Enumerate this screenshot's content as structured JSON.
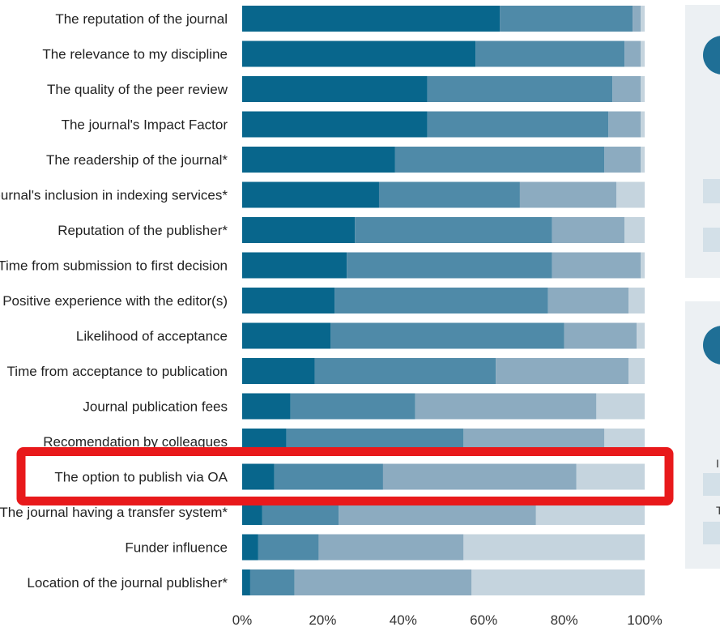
{
  "chart_data": {
    "type": "bar",
    "orientation": "horizontal",
    "stacked": true,
    "percent": true,
    "categories": [
      "The reputation of the journal",
      "The relevance to my discipline",
      "The quality of the peer review",
      "The journal's Impact Factor",
      "The readership of the journal*",
      "The journal's inclusion in indexing services*",
      "Reputation of the publisher*",
      "Time from submission to first decision",
      "Positive experience with the editor(s)",
      "Likelihood of acceptance",
      "Time from acceptance to publication",
      "Journal publication fees",
      "Recomendation by colleagues",
      "The option to publish via OA",
      "The journal having a transfer system*",
      "Funder influence",
      "Location of the journal publisher*"
    ],
    "series": [
      {
        "color": "#08668c",
        "values": [
          64,
          58,
          46,
          46,
          38,
          34,
          28,
          26,
          23,
          22,
          18,
          12,
          11,
          8,
          5,
          4,
          2
        ]
      },
      {
        "color": "#4f8aa8",
        "values": [
          33,
          37,
          46,
          45,
          52,
          35,
          49,
          51,
          53,
          58,
          45,
          31,
          44,
          27,
          19,
          15,
          11
        ]
      },
      {
        "color": "#8cabc0",
        "values": [
          2,
          4,
          7,
          8,
          9,
          24,
          18,
          22,
          20,
          18,
          33,
          45,
          35,
          48,
          49,
          36,
          44
        ]
      },
      {
        "color": "#c5d4de",
        "values": [
          1,
          1,
          1,
          1,
          1,
          7,
          5,
          1,
          4,
          2,
          4,
          12,
          10,
          17,
          27,
          45,
          43
        ]
      }
    ],
    "xlim": [
      0,
      100
    ],
    "xticks": [
      "0%",
      "20%",
      "40%",
      "60%",
      "80%",
      "100%"
    ],
    "grid": false,
    "legend": "none",
    "highlight_category": "The option to publish via OA",
    "highlight_color": "#e8191b"
  },
  "side_panels": {
    "fragment_1": "I",
    "fragment_2": "T"
  }
}
